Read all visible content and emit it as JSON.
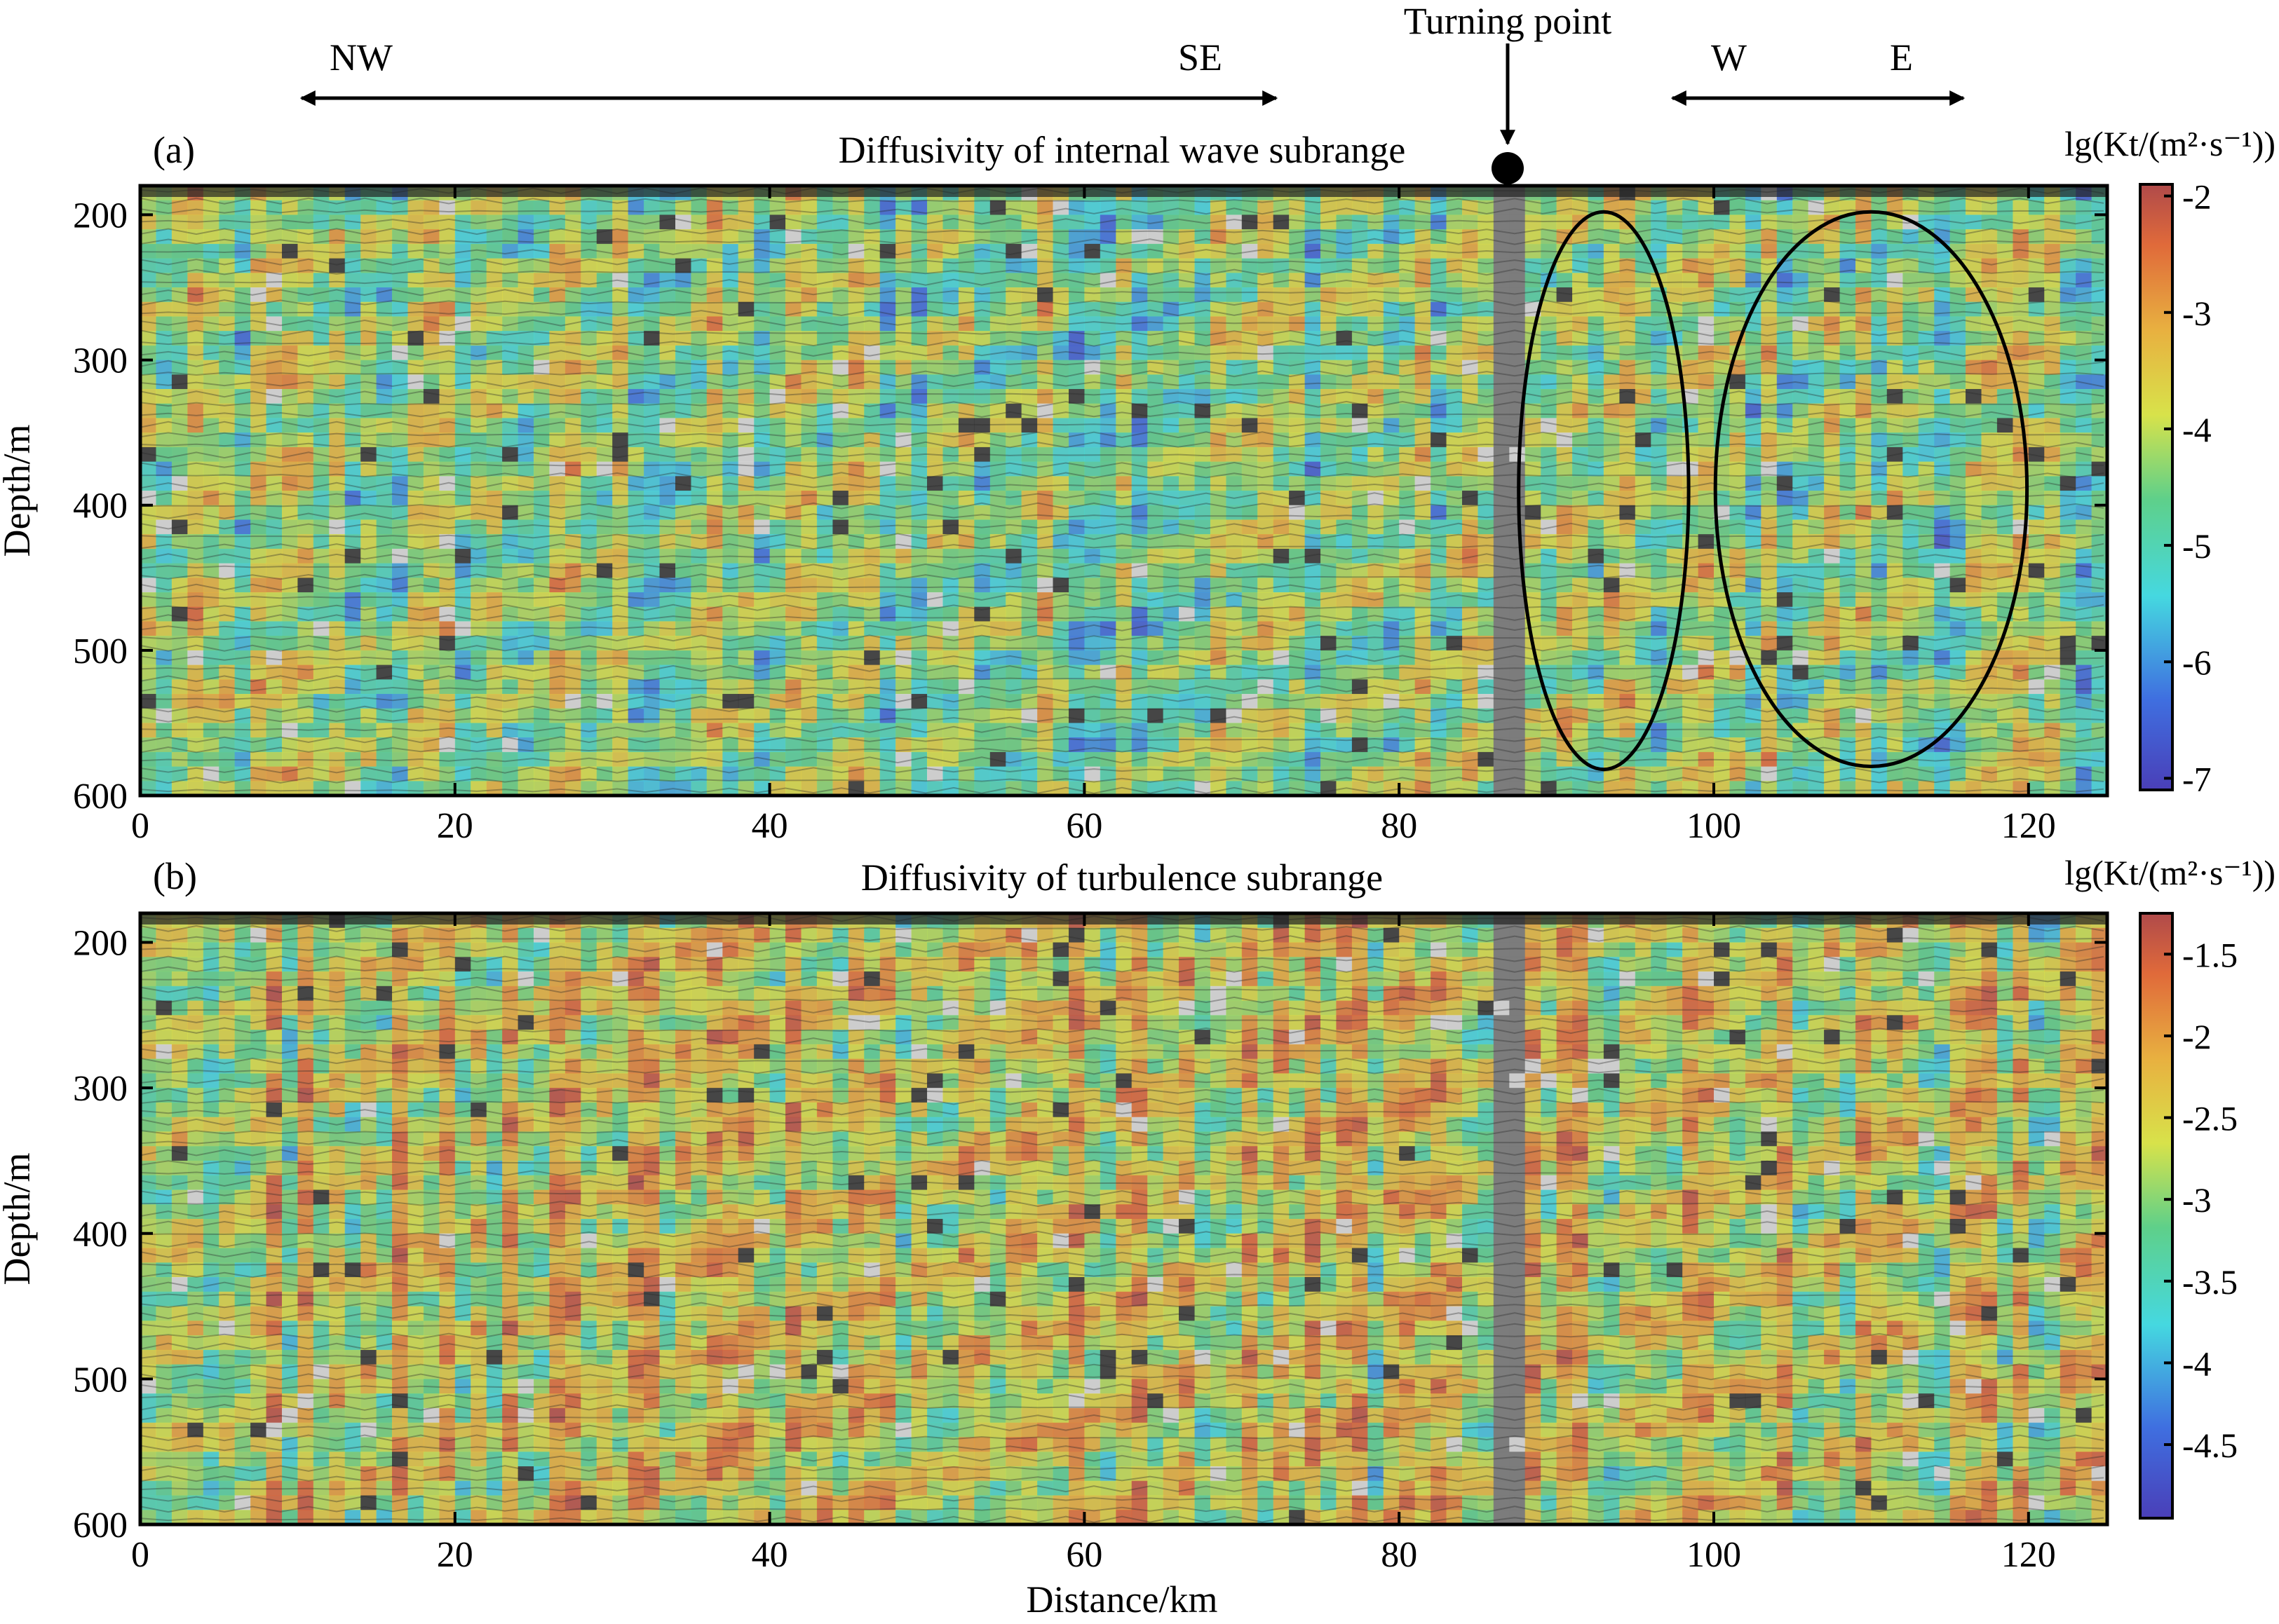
{
  "header": {
    "left_arrow": {
      "start": "NW",
      "end": "SE"
    },
    "right_arrow": {
      "start": "W",
      "end": "E"
    },
    "turning_point_label": "Turning point"
  },
  "common_axes": {
    "xlabel": "Distance/km",
    "ylabel": "Depth/m",
    "x_ticks": [
      "0",
      "20",
      "40",
      "60",
      "80",
      "100",
      "120"
    ],
    "y_ticks": [
      "200",
      "300",
      "400",
      "500",
      "600"
    ]
  },
  "colormap": {
    "name": "jet-like (semi-transparent over grayscale seismic)",
    "stops": [
      "#4a3fb8",
      "#3f6fe0",
      "#45d8e0",
      "#5ed08a",
      "#d8e24a",
      "#e8b040",
      "#e06a3a",
      "#b04a4a"
    ]
  },
  "chart_data": [
    {
      "type": "heatmap",
      "panel": "(a)",
      "title": "Diffusivity of internal wave subrange",
      "xlabel": "",
      "ylabel": "Depth/m",
      "xlim": [
        0,
        125
      ],
      "ylim": [
        600,
        180
      ],
      "colorbar_label": "lg(Kt/(m²·s⁻¹))",
      "colorbar_range": [
        -7.1,
        -1.9
      ],
      "colorbar_ticks": [
        "-2",
        "-3",
        "-4",
        "-5",
        "-6",
        "-7"
      ],
      "turning_point_x": 87,
      "annotations": [
        {
          "shape": "ellipse",
          "center": [
            93,
            390
          ],
          "x_radius": 5.4,
          "depth_radius": 192
        },
        {
          "shape": "ellipse",
          "center": [
            110,
            389
          ],
          "x_radius": 9.9,
          "depth_radius": 191
        }
      ]
    },
    {
      "type": "heatmap",
      "panel": "(b)",
      "title": "Diffusivity of turbulence subrange",
      "xlabel": "Distance/km",
      "ylabel": "Depth/m",
      "xlim": [
        0,
        125
      ],
      "ylim": [
        600,
        180
      ],
      "colorbar_label": "lg(Kt/(m²·s⁻¹))",
      "colorbar_range": [
        -4.95,
        -1.25
      ],
      "colorbar_ticks": [
        "-1.5",
        "-2",
        "-2.5",
        "-3",
        "-3.5",
        "-4",
        "-4.5"
      ]
    }
  ]
}
